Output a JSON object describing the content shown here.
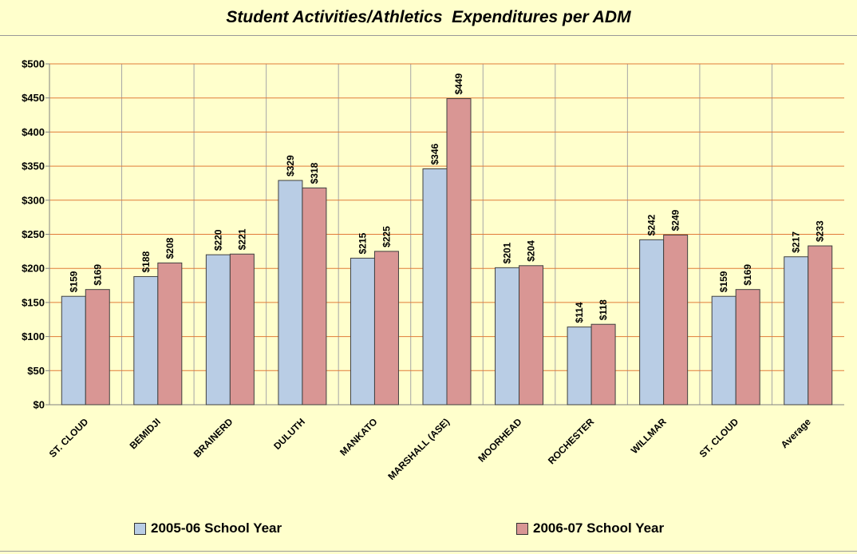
{
  "chart_data": {
    "type": "bar",
    "title": "Student Activities/Athletics  Expenditures per ADM",
    "categories": [
      "ST. CLOUD",
      "BEMIDJI",
      "BRAINERD",
      "DULUTH",
      "MANKATO",
      "MARSHALL (ASE)",
      "MOORHEAD",
      "ROCHESTER",
      "WILLMAR",
      "ST. CLOUD",
      "Average"
    ],
    "series": [
      {
        "name": "2005-06 School Year",
        "color": "#B9CDE5",
        "values": [
          159,
          188,
          220,
          329,
          215,
          346,
          201,
          114,
          242,
          159,
          217
        ],
        "labels": [
          "$159",
          "$188",
          "$220",
          "$329",
          "$215",
          "$346",
          "$201",
          "$114",
          "$242",
          "$159",
          "$217"
        ]
      },
      {
        "name": "2006-07 School Year",
        "color": "#D99694",
        "values": [
          169,
          208,
          221,
          318,
          225,
          449,
          204,
          118,
          249,
          169,
          233
        ],
        "labels": [
          "$169",
          "$208",
          "$221",
          "$318",
          "$225",
          "$449",
          "$204",
          "$118",
          "$249",
          "$169",
          "$233"
        ]
      }
    ],
    "ylim": [
      0,
      500
    ],
    "yticks": [
      0,
      50,
      100,
      150,
      200,
      250,
      300,
      350,
      400,
      450,
      500
    ],
    "ytick_labels": [
      "$0",
      "$50",
      "$100",
      "$150",
      "$200",
      "$250",
      "$300",
      "$350",
      "$400",
      "$450",
      "$500"
    ],
    "gridlines": true,
    "gridline_color": "#E07B39",
    "plot_background": "#FFFFCC",
    "legend_position": "bottom",
    "xlabel": "",
    "ylabel": ""
  }
}
